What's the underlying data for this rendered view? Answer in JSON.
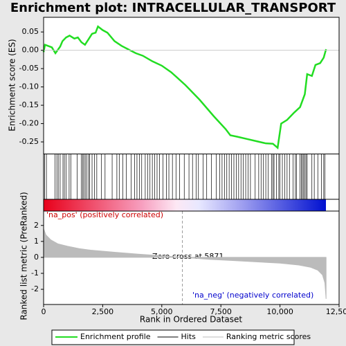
{
  "chart_data": [
    {
      "type": "line",
      "title": "Enrichment plot: INTRACELLULAR_TRANSPORT",
      "y_label": "Enrichment score (ES)",
      "xlim": [
        0,
        12500
      ],
      "ylim": [
        -0.282,
        0.09
      ],
      "yticks": [
        {
          "value": 0.05,
          "label": "0.05"
        },
        {
          "value": 0,
          "label": "0.00"
        },
        {
          "value": -0.05,
          "label": "-0.05"
        },
        {
          "value": -0.1,
          "label": "-0.10"
        },
        {
          "value": -0.15,
          "label": "-0.15"
        },
        {
          "value": -0.2,
          "label": "-0.20"
        },
        {
          "value": -0.25,
          "label": "-0.25"
        }
      ],
      "series": [
        {
          "name": "Enrichment profile",
          "color": "#22dd22",
          "x": [
            0,
            60,
            350,
            500,
            700,
            800,
            950,
            1100,
            1300,
            1450,
            1600,
            1750,
            1900,
            2050,
            2200,
            2300,
            2500,
            2700,
            3000,
            3300,
            3600,
            3900,
            4200,
            4600,
            5000,
            5400,
            6000,
            6600,
            7200,
            7700,
            7900,
            8200,
            8600,
            9000,
            9400,
            9700,
            9900,
            10050,
            10300,
            10600,
            10850,
            11050,
            11150,
            11350,
            11500,
            11700,
            11850,
            11950
          ],
          "values": [
            -0.005,
            0.015,
            0.008,
            -0.008,
            0.01,
            0.025,
            0.035,
            0.04,
            0.032,
            0.035,
            0.022,
            0.015,
            0.03,
            0.045,
            0.048,
            0.065,
            0.055,
            0.048,
            0.025,
            0.012,
            0.002,
            -0.008,
            -0.015,
            -0.03,
            -0.042,
            -0.06,
            -0.095,
            -0.135,
            -0.18,
            -0.215,
            -0.232,
            -0.236,
            -0.242,
            -0.248,
            -0.254,
            -0.255,
            -0.266,
            -0.2,
            -0.19,
            -0.17,
            -0.155,
            -0.12,
            -0.065,
            -0.07,
            -0.04,
            -0.035,
            -0.02,
            0.003
          ]
        }
      ]
    },
    {
      "type": "rug",
      "xlim": [
        0,
        12500
      ],
      "series": [
        {
          "name": "Hits",
          "color": "#000000",
          "x": [
            40,
            120,
            480,
            560,
            620,
            700,
            820,
            880,
            950,
            1080,
            1150,
            1420,
            1600,
            1650,
            1700,
            1760,
            1820,
            1900,
            1950,
            2050,
            2150,
            2250,
            2450,
            2600,
            2900,
            3100,
            3200,
            3350,
            3500,
            3700,
            3850,
            3950,
            4050,
            4150,
            4300,
            4400,
            4500,
            4600,
            4700,
            4800,
            4900,
            5050,
            5200,
            5300,
            5450,
            5600,
            5750,
            5950,
            6150,
            6300,
            6450,
            6550,
            6750,
            6900,
            7100,
            7300,
            7450,
            7550,
            7650,
            7750,
            7850,
            7950,
            8050,
            8150,
            8250,
            8350,
            8450,
            8550,
            8650,
            8750,
            8950,
            9100,
            9200,
            9300,
            9400,
            9500,
            9650,
            9700,
            9750,
            9850,
            9950,
            10000,
            10100,
            10200,
            10300,
            10400,
            10550,
            10650,
            10700,
            10850,
            10900,
            10950,
            11000,
            11050,
            11100,
            11150,
            11350,
            11450,
            11600,
            11750,
            11850,
            11900
          ]
        }
      ]
    },
    {
      "type": "area",
      "y_label": "Ranked list metric (PreRanked)",
      "x_label": "Rank in Ordered Dataset",
      "xlim": [
        0,
        12500
      ],
      "ylim": [
        -2.95,
        2.9
      ],
      "xticks": [
        {
          "value": 0,
          "label": "0"
        },
        {
          "value": 2500,
          "label": "2,500"
        },
        {
          "value": 5000,
          "label": "5,000"
        },
        {
          "value": 7500,
          "label": "7,500"
        },
        {
          "value": 10000,
          "label": "10,000"
        },
        {
          "value": 12500,
          "label": "12,500"
        }
      ],
      "yticks": [
        2,
        1,
        0,
        -1,
        -2
      ],
      "zero_cross": 5871,
      "annotations": [
        "'na_pos' (positively correlated)",
        "Zero cross at 5871",
        "'na_neg' (negatively correlated)"
      ],
      "series": [
        {
          "name": "Ranking metric scores",
          "color": "#bbbbbb",
          "x": [
            0,
            100,
            300,
            600,
            1000,
            1500,
            2000,
            3000,
            4000,
            5000,
            5871,
            7000,
            8000,
            9000,
            10000,
            10800,
            11300,
            11600,
            11800,
            11900,
            11950
          ],
          "values": [
            1.8,
            1.4,
            1.1,
            0.85,
            0.7,
            0.55,
            0.45,
            0.32,
            0.2,
            0.1,
            0,
            -0.12,
            -0.2,
            -0.28,
            -0.36,
            -0.48,
            -0.62,
            -0.8,
            -1.1,
            -1.6,
            -2.6
          ]
        }
      ]
    }
  ]
}
